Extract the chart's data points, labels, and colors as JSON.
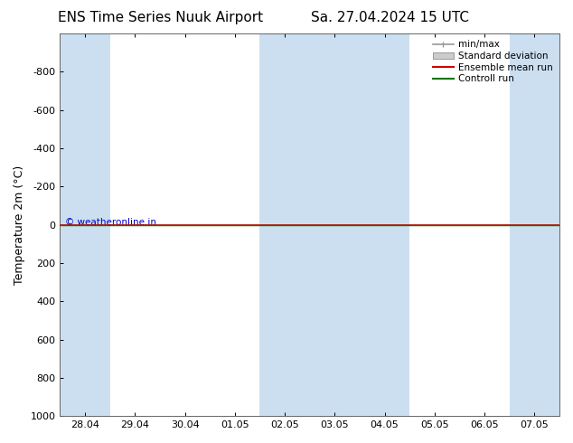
{
  "title_left": "ENS Time Series Nuuk Airport",
  "title_right": "Sa. 27.04.2024 15 UTC",
  "ylabel": "Temperature 2m (°C)",
  "ylim": [
    -1000,
    1000
  ],
  "yticks": [
    -800,
    -600,
    -400,
    -200,
    0,
    200,
    400,
    600,
    800,
    1000
  ],
  "xlim": [
    -0.5,
    9.5
  ],
  "xtick_labels": [
    "28.04",
    "29.04",
    "30.04",
    "01.05",
    "02.05",
    "03.05",
    "04.05",
    "05.05",
    "06.05",
    "07.05"
  ],
  "xtick_positions": [
    0,
    1,
    2,
    3,
    4,
    5,
    6,
    7,
    8,
    9
  ],
  "shaded_spans": [
    [
      -0.5,
      0.5
    ],
    [
      3.5,
      5.5
    ],
    [
      5.5,
      6.5
    ],
    [
      8.5,
      9.5
    ]
  ],
  "shade_color": "#ccdff0",
  "green_line_y": 0,
  "green_line_color": "#007700",
  "red_line_color": "#cc0000",
  "copyright_text": "© weatheronline.in",
  "copyright_color": "#0000cc",
  "legend_entries": [
    "min/max",
    "Standard deviation",
    "Ensemble mean run",
    "Controll run"
  ],
  "bg_color": "#ffffff",
  "plot_bg_color": "#ffffff",
  "axis_color": "#666666",
  "title_fontsize": 11,
  "label_fontsize": 9,
  "tick_fontsize": 8
}
